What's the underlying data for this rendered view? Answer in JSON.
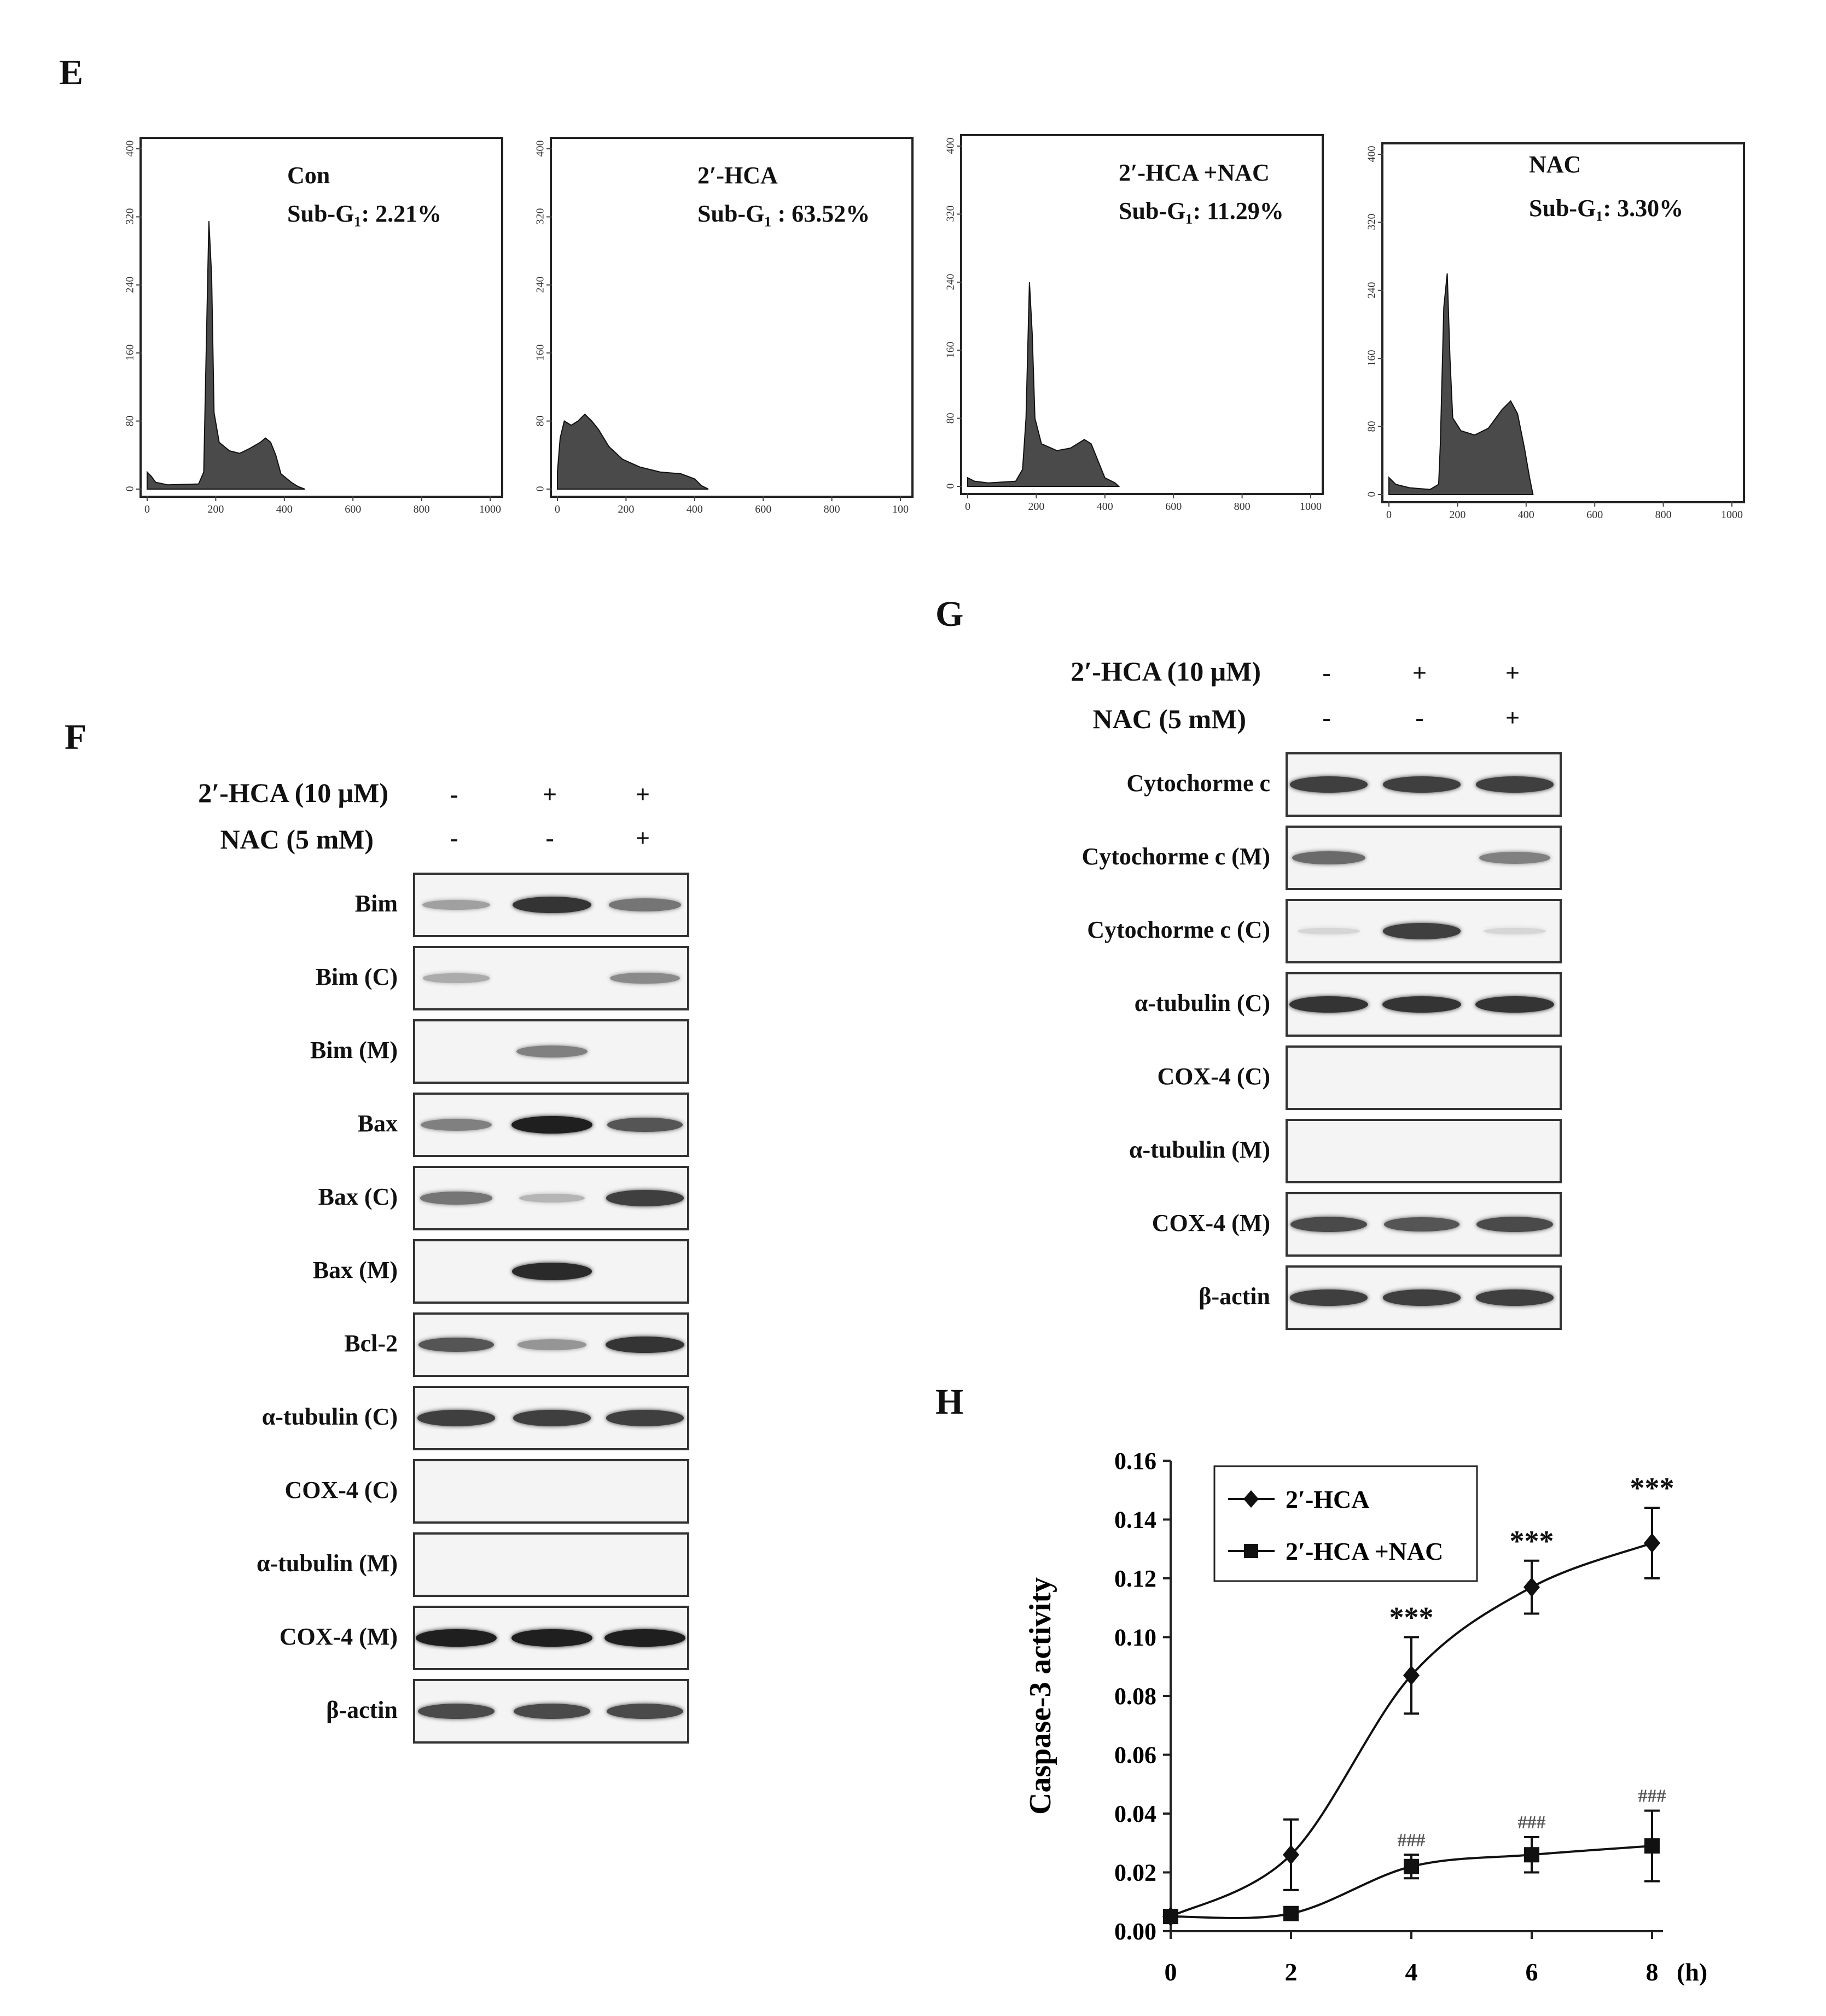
{
  "panels": {
    "E": "E",
    "F": "F",
    "G": "G",
    "H": "H"
  },
  "flow": {
    "y_ticks": [
      "0",
      "80",
      "160",
      "240",
      "320",
      "400"
    ],
    "x_ticks_a": [
      "0",
      "200",
      "400",
      "600",
      "800",
      "1000"
    ],
    "x_ticks_b": [
      "0",
      "200",
      "400",
      "600",
      "800",
      "100"
    ],
    "hist1": {
      "cond": "Con",
      "subg": "Sub-G₁: 2.21%"
    },
    "hist2": {
      "cond": "2′-HCA",
      "subg": "Sub-G₁ : 63.52%"
    },
    "hist3": {
      "cond": "2′-HCA +NAC",
      "subg": "Sub-G₁: 11.29%"
    },
    "hist4": {
      "cond": "NAC",
      "subg": "Sub-G₁: 3.30%"
    }
  },
  "blotF": {
    "hca_label": "2′-HCA (10 μM)",
    "nac_label": "NAC (5 mM)",
    "hca_signs": [
      "-",
      "+",
      "+"
    ],
    "nac_signs": [
      "-",
      "-",
      "+"
    ],
    "rows": [
      "Bim",
      "Bim (C)",
      "Bim (M)",
      "Bax",
      "Bax (C)",
      "Bax (M)",
      "Bcl-2",
      "α-tubulin  (C)",
      "COX-4 (C)",
      "α-tubulin  (M)",
      "COX-4 (M)",
      "β-actin"
    ]
  },
  "blotG": {
    "hca_label": "2′-HCA (10 μM)",
    "nac_label": "NAC (5 mM)",
    "hca_signs": [
      "-",
      "+",
      "+"
    ],
    "nac_signs": [
      "-",
      "-",
      "+"
    ],
    "rows": [
      "Cytochorme  c",
      "Cytochorme  c (M)",
      "Cytochorme  c (C)",
      "α-tubulin  (C)",
      "COX-4 (C)",
      "α-tubulin  (M)",
      "COX-4 (M)",
      "β-actin"
    ]
  },
  "chart_data": {
    "type": "line",
    "title": "",
    "ylabel": "Caspase-3 activity",
    "xlabel": "",
    "x_unit": "(h)",
    "x": [
      0,
      2,
      4,
      6,
      8
    ],
    "ylim": [
      0,
      0.16
    ],
    "y_ticks": [
      "0.00",
      "0.02",
      "0.04",
      "0.06",
      "0.08",
      "0.10",
      "0.12",
      "0.14",
      "0.16"
    ],
    "x_ticks": [
      "0",
      "2",
      "4",
      "6",
      "8"
    ],
    "legend_position": "top-left",
    "series": [
      {
        "name": "2′-HCA",
        "marker": "diamond",
        "values": [
          0.005,
          0.026,
          0.087,
          0.117,
          0.132
        ],
        "errors": [
          0.002,
          0.012,
          0.013,
          0.009,
          0.012
        ],
        "annotations": [
          "",
          "",
          "***",
          "***",
          "***"
        ]
      },
      {
        "name": "2′-HCA +NAC",
        "marker": "square",
        "values": [
          0.005,
          0.006,
          0.022,
          0.026,
          0.029
        ],
        "errors": [
          0.002,
          0.002,
          0.004,
          0.006,
          0.012
        ],
        "annotations": [
          "",
          "",
          "###",
          "###",
          "###"
        ]
      }
    ]
  }
}
